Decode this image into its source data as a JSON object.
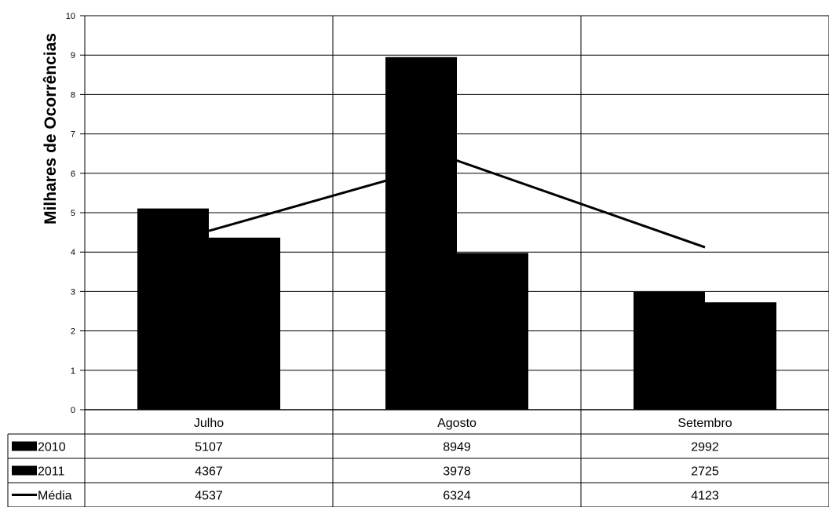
{
  "chart_data": {
    "type": "bar",
    "ylabel": "Milhares de Ocorrências",
    "ylim": [
      0,
      10
    ],
    "yticks": [
      "0",
      "1",
      "2",
      "3",
      "4",
      "5",
      "6",
      "7",
      "8",
      "9",
      "10"
    ],
    "grid": true,
    "categories": [
      "Julho",
      "Agosto",
      "Setembro"
    ],
    "series": [
      {
        "name": "2010",
        "kind": "bar",
        "values": [
          5107,
          8949,
          2992
        ],
        "labels": [
          "5107",
          "8949",
          "2992"
        ],
        "color": "#000000"
      },
      {
        "name": "2011",
        "kind": "bar",
        "values": [
          4367,
          3978,
          2725
        ],
        "labels": [
          "4367",
          "3978",
          "2725"
        ],
        "color": "#000000"
      },
      {
        "name": "Média",
        "kind": "line",
        "values": [
          4537,
          6324,
          4123
        ],
        "labels": [
          "4537",
          "6324",
          "4123"
        ],
        "color": "#000000"
      }
    ],
    "legend": "data-table-bottom"
  }
}
